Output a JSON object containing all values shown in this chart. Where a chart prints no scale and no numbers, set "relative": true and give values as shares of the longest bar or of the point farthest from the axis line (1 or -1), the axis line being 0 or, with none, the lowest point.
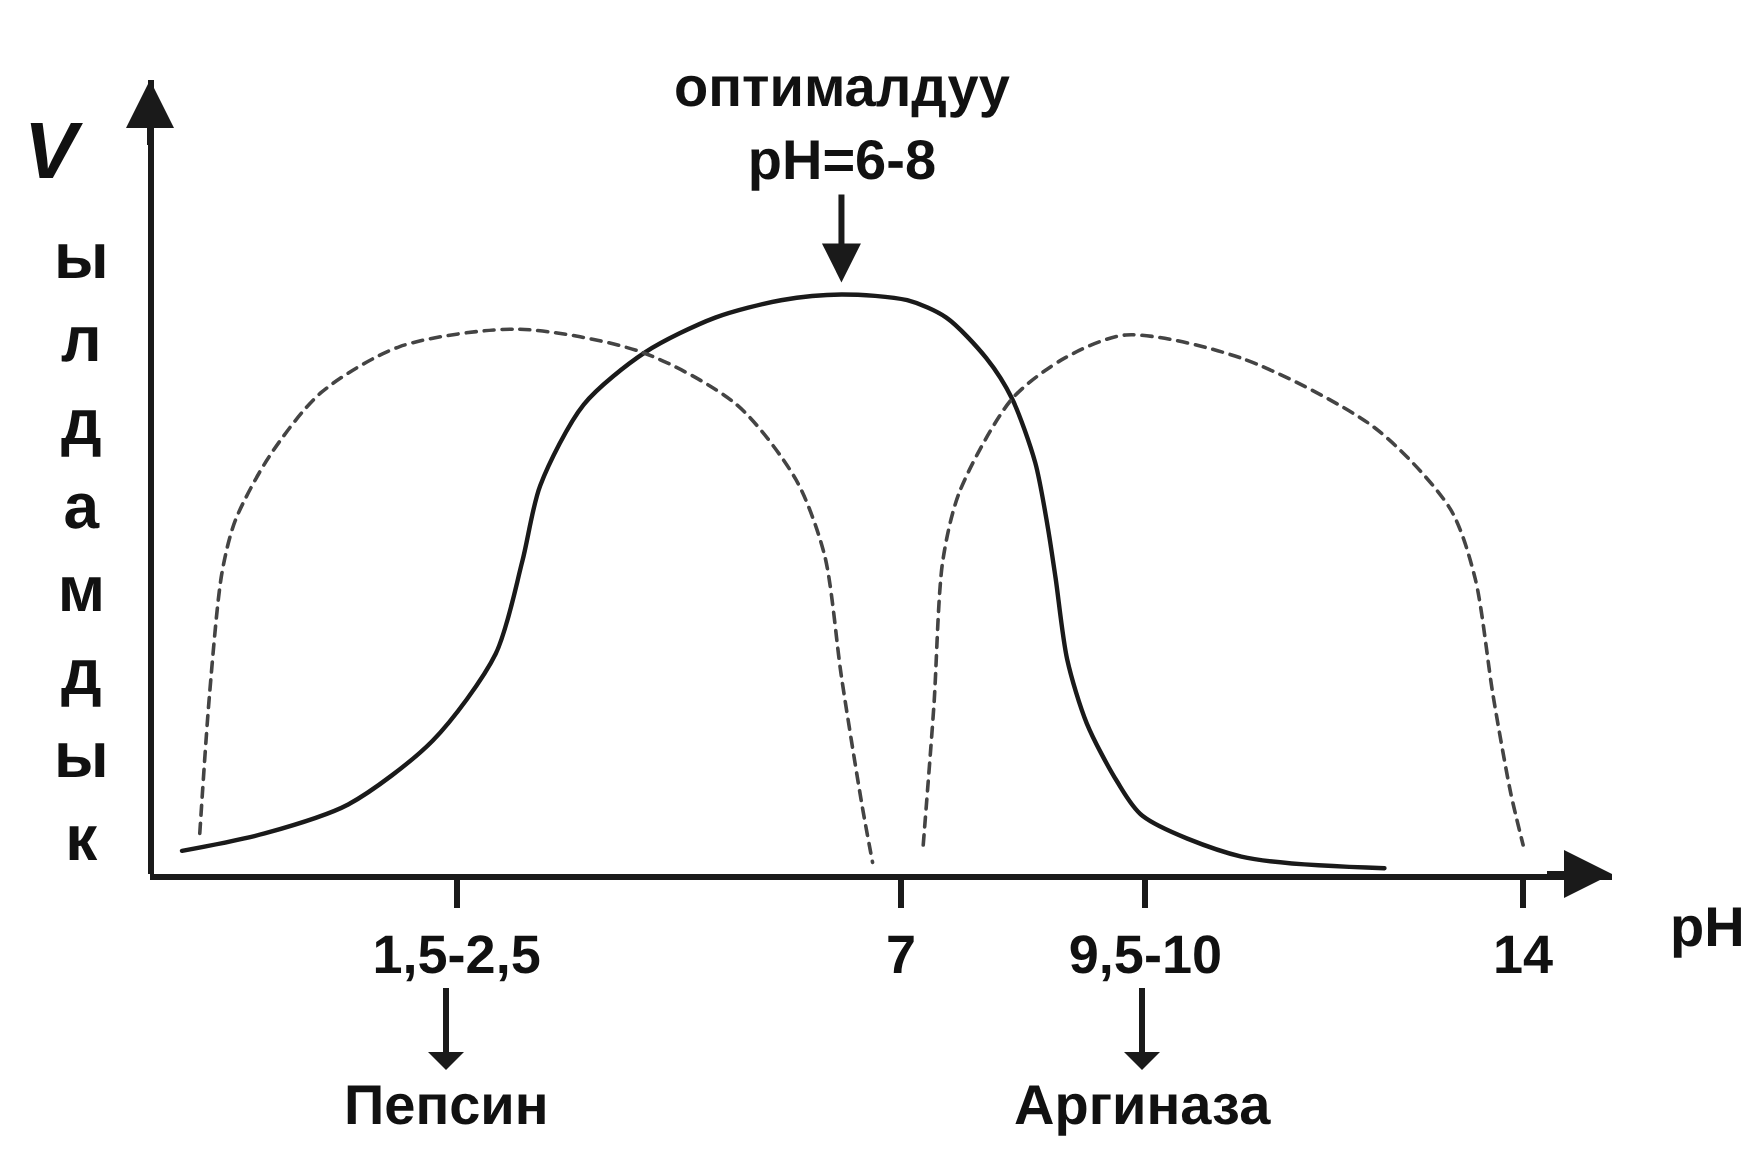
{
  "chart_data": {
    "type": "line",
    "relative": true,
    "ylabel": "Vылдамдык",
    "xlabel": "pH",
    "xlim": [
      -1.45,
      15
    ],
    "xticks": [
      {
        "value": 2,
        "label": "1,5-2,5"
      },
      7,
      {
        "value": 9.75,
        "label": "9,5-10"
      },
      14
    ],
    "tick_labels": "x",
    "grid": false,
    "annotations": [
      {
        "text": "оптималдуу\npH=6-8",
        "x": 6.33,
        "y": 1.0
      },
      "Пепсин",
      "Аргиназа"
    ],
    "series": [
      {
        "color": "#1a1a1a",
        "line_style": "solid",
        "x": [
          -1.09,
          -0.16,
          0.78,
          1.73,
          2.44,
          2.74,
          2.94,
          3.43,
          4.12,
          4.91,
          5.65,
          6.33,
          7.07,
          7.51,
          7.96,
          8.25,
          8.51,
          8.65,
          8.74,
          8.87,
          9.09,
          9.43,
          9.72,
          10.83,
          12.44
        ],
        "values": [
          0.04,
          0.07,
          0.12,
          0.23,
          0.38,
          0.54,
          0.67,
          0.81,
          0.9,
          0.96,
          0.99,
          1.0,
          0.99,
          0.96,
          0.89,
          0.82,
          0.71,
          0.6,
          0.51,
          0.37,
          0.26,
          0.16,
          0.1,
          0.03,
          0.01
        ]
      },
      {
        "color": "#444444",
        "line_style": "dashed",
        "x": [
          -0.89,
          -0.78,
          -0.64,
          -0.49,
          -0.11,
          0.47,
          1.36,
          2.69,
          4.09,
          5.15,
          5.82,
          6.14,
          6.33,
          6.56,
          6.68
        ],
        "values": [
          0.07,
          0.31,
          0.52,
          0.61,
          0.72,
          0.83,
          0.91,
          0.94,
          0.9,
          0.81,
          0.68,
          0.55,
          0.34,
          0.12,
          0.02
        ]
      },
      {
        "color": "#444444",
        "line_style": "dashed",
        "x": [
          7.25,
          7.37,
          7.47,
          7.66,
          8.25,
          8.84,
          9.53,
          10.83,
          12.33,
          13.18,
          13.46,
          13.66,
          13.86,
          14.0
        ],
        "values": [
          0.05,
          0.29,
          0.54,
          0.66,
          0.82,
          0.89,
          0.93,
          0.89,
          0.77,
          0.63,
          0.51,
          0.31,
          0.14,
          0.05
        ]
      }
    ]
  }
}
